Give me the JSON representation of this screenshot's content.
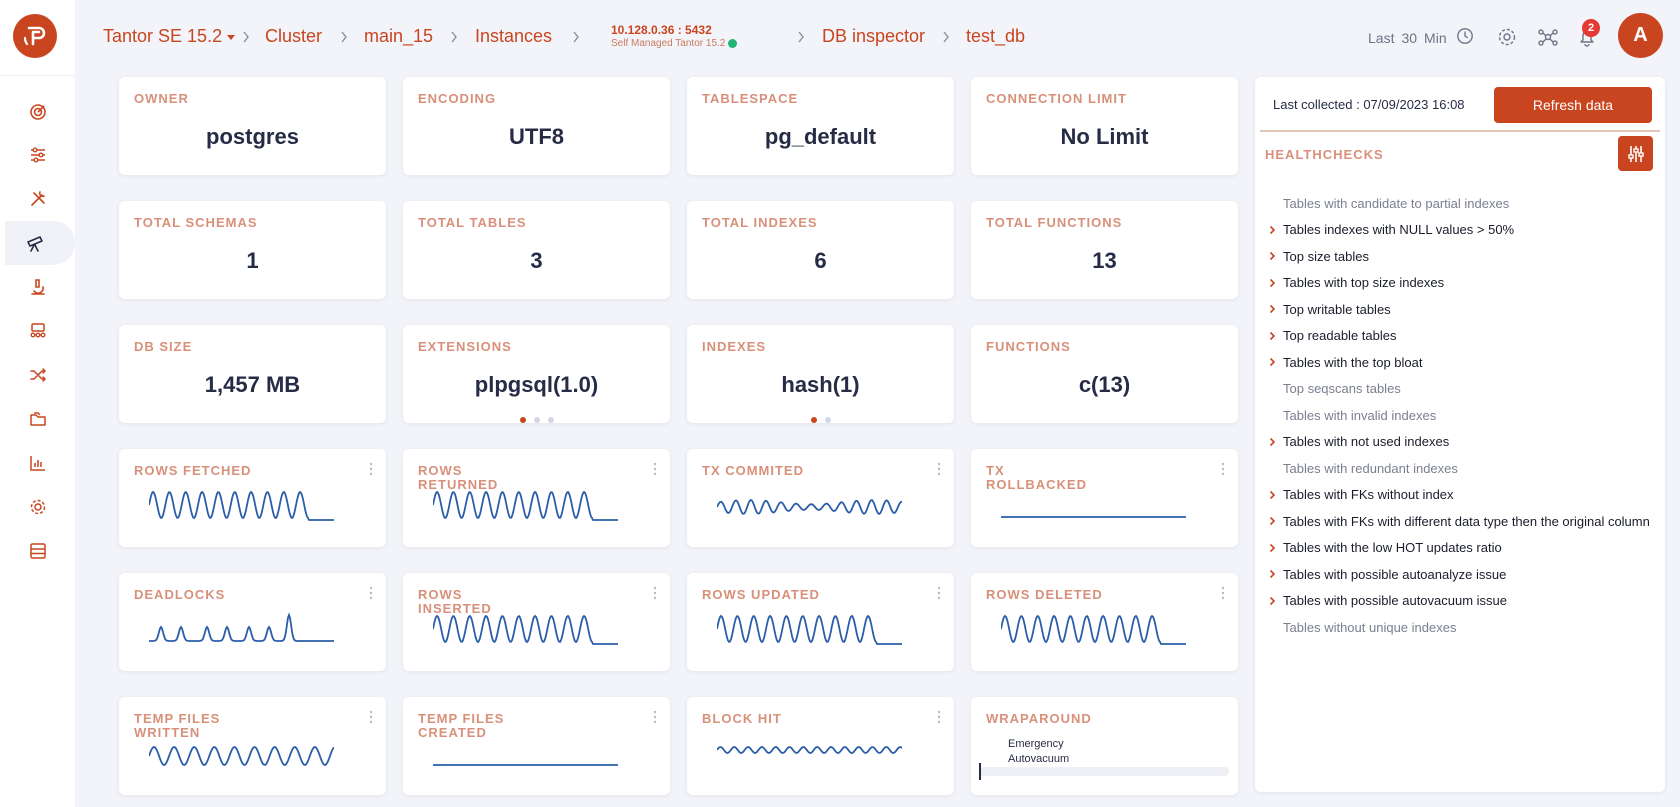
{
  "brand": {
    "accent": "#c9451f",
    "logo_icon": "logo-icon"
  },
  "sidebar": {
    "items": [
      {
        "icon": "dashboard-gauge-icon"
      },
      {
        "icon": "sliders-icon"
      },
      {
        "icon": "tools-icon"
      },
      {
        "icon": "telescope-icon",
        "active": true
      },
      {
        "icon": "microscope-icon"
      },
      {
        "icon": "team-icon"
      },
      {
        "icon": "shuffle-icon"
      },
      {
        "icon": "folders-icon"
      },
      {
        "icon": "bar-chart-icon"
      },
      {
        "icon": "gear-icon"
      },
      {
        "icon": "database-icon"
      }
    ]
  },
  "header": {
    "product": "Tantor SE 15.2",
    "crumbs": [
      "Cluster",
      "main_15",
      "Instances"
    ],
    "instance_host": "10.128.0.36 : 5432",
    "instance_sub": "Self Managed Tantor 15.2",
    "crumbs2": [
      "DB inspector",
      "test_db"
    ],
    "time": {
      "prefix": "Last",
      "value": "30",
      "unit": "Min"
    },
    "notifications": "2",
    "avatar": "A"
  },
  "stats": [
    {
      "label": "OWNER",
      "value": "postgres"
    },
    {
      "label": "ENCODING",
      "value": "UTF8"
    },
    {
      "label": "TABLESPACE",
      "value": "pg_default"
    },
    {
      "label": "CONNECTION LIMIT",
      "value": "No Limit"
    },
    {
      "label": "TOTAL SCHEMAS",
      "value": "1"
    },
    {
      "label": "TOTAL TABLES",
      "value": "3"
    },
    {
      "label": "TOTAL INDEXES",
      "value": "6"
    },
    {
      "label": "TOTAL FUNCTIONS",
      "value": "13"
    },
    {
      "label": "DB SIZE",
      "value": "1,457 MB"
    },
    {
      "label": "EXTENSIONS",
      "value": "plpgsql(1.0)"
    },
    {
      "label": "INDEXES",
      "value": "hash(1)"
    },
    {
      "label": "FUNCTIONS",
      "value": "c(13)"
    }
  ],
  "metrics": [
    {
      "label": "ROWS FETCHED",
      "shape": "oscillating-burst"
    },
    {
      "label": "ROWS RETURNED",
      "shape": "oscillating-burst"
    },
    {
      "label": "TX COMMITED",
      "shape": "oscillating-small"
    },
    {
      "label": "TX ROLLBACKED",
      "shape": "flat"
    },
    {
      "label": "DEADLOCKS",
      "shape": "sparse-bumps"
    },
    {
      "label": "ROWS INSERTED",
      "shape": "oscillating-burst"
    },
    {
      "label": "ROWS UPDATED",
      "shape": "oscillating-burst"
    },
    {
      "label": "ROWS DELETED",
      "shape": "oscillating-burst"
    },
    {
      "label": "TEMP FILES WRITTEN",
      "shape": "oscillating-medium"
    },
    {
      "label": "TEMP FILES CREATED",
      "shape": "flat"
    },
    {
      "label": "BLOCK HIT",
      "shape": "oscillating-tiny"
    }
  ],
  "wraparound": {
    "label": "WRAPAROUND",
    "legend_line1": "Emergency",
    "legend_line2": "Autovacuum",
    "level_fraction": 0.0
  },
  "panel": {
    "last_collected": "Last collected : 07/09/2023 16:08",
    "refresh_label": "Refresh data",
    "healthchecks_title": "HEALTHCHECKS",
    "healthchecks": [
      {
        "label": "Tables with candidate to partial indexes",
        "expandable": false
      },
      {
        "label": "Tables indexes with NULL values > 50%",
        "expandable": true
      },
      {
        "label": "Top size tables",
        "expandable": true
      },
      {
        "label": "Tables with top size indexes",
        "expandable": true
      },
      {
        "label": "Top writable tables",
        "expandable": true
      },
      {
        "label": "Top readable tables",
        "expandable": true
      },
      {
        "label": "Tables with the top bloat",
        "expandable": true
      },
      {
        "label": "Top seqscans tables",
        "expandable": false
      },
      {
        "label": "Tables with invalid indexes",
        "expandable": false
      },
      {
        "label": "Tables with not used indexes",
        "expandable": true
      },
      {
        "label": "Tables with redundant indexes",
        "expandable": false
      },
      {
        "label": "Tables with FKs without index",
        "expandable": true
      },
      {
        "label": "Tables with FKs with different data type then the original column",
        "expandable": true
      },
      {
        "label": "Tables with the low HOT updates ratio",
        "expandable": true
      },
      {
        "label": "Tables with possible autoanalyze issue",
        "expandable": true
      },
      {
        "label": "Tables with possible autovacuum issue",
        "expandable": true
      },
      {
        "label": "Tables without unique indexes",
        "expandable": false
      }
    ]
  }
}
